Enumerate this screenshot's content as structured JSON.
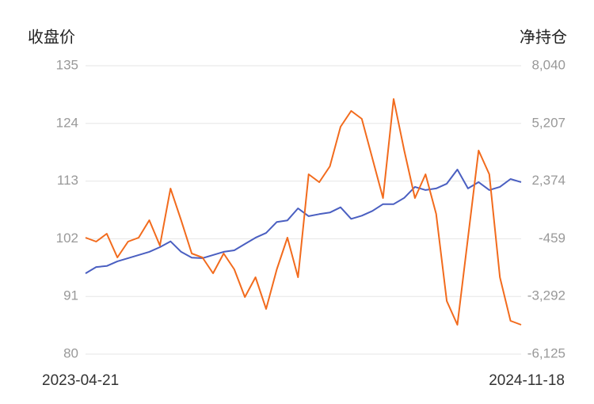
{
  "chart_data": {
    "type": "line",
    "y_title": "收盘价",
    "y2_title": "净持仓",
    "categories": [
      "2023-04-21",
      null,
      null,
      null,
      null,
      null,
      null,
      null,
      null,
      null,
      null,
      null,
      null,
      null,
      null,
      null,
      null,
      null,
      null,
      null,
      null,
      null,
      null,
      null,
      null,
      null,
      null,
      null,
      null,
      null,
      null,
      null,
      null,
      null,
      null,
      null,
      null,
      null,
      null,
      null,
      null,
      "2024-11-18"
    ],
    "ylim": [
      80,
      135
    ],
    "yticks": [
      80,
      91,
      102,
      113,
      124,
      135
    ],
    "y2lim": [
      -6125,
      8040
    ],
    "y2ticks": [
      {
        "value": -6125,
        "label": "-6,125"
      },
      {
        "value": -3292,
        "label": "-3,292"
      },
      -459,
      {
        "value": 2374,
        "label": "2,374"
      },
      {
        "value": 5207,
        "label": "5,207"
      },
      {
        "value": 8040,
        "label": "8,040"
      }
    ],
    "grid": true,
    "series": [
      {
        "color": "#4a5fc1",
        "axis": "y",
        "values": [
          95.4,
          96.6,
          96.8,
          97.7,
          98.3,
          98.9,
          99.5,
          100.4,
          101.5,
          99.5,
          98.4,
          98.3,
          98.9,
          99.5,
          99.8,
          101.0,
          102.2,
          103.1,
          105.2,
          105.5,
          107.8,
          106.3,
          106.7,
          107.0,
          108.0,
          105.8,
          106.4,
          107.3,
          108.6,
          108.6,
          109.8,
          111.9,
          111.3,
          111.6,
          112.5,
          115.2,
          111.6,
          112.8,
          111.3,
          111.9,
          113.4,
          112.8
        ]
      },
      {
        "color": "#f26b1d",
        "axis": "y2",
        "values": [
          -404,
          -599,
          -210,
          -1377,
          -599,
          -404,
          452,
          -794,
          2008,
          452,
          -1183,
          -1377,
          -2156,
          -1183,
          -1961,
          -3323,
          -2350,
          -3907,
          -1961,
          -404,
          -2350,
          2709,
          2320,
          3098,
          5044,
          5822,
          5433,
          3487,
          1541,
          6406,
          3876,
          1541,
          2709,
          763,
          -3518,
          -4686,
          -404,
          3876,
          2709,
          -2350,
          -4491,
          -4686
        ]
      }
    ]
  }
}
